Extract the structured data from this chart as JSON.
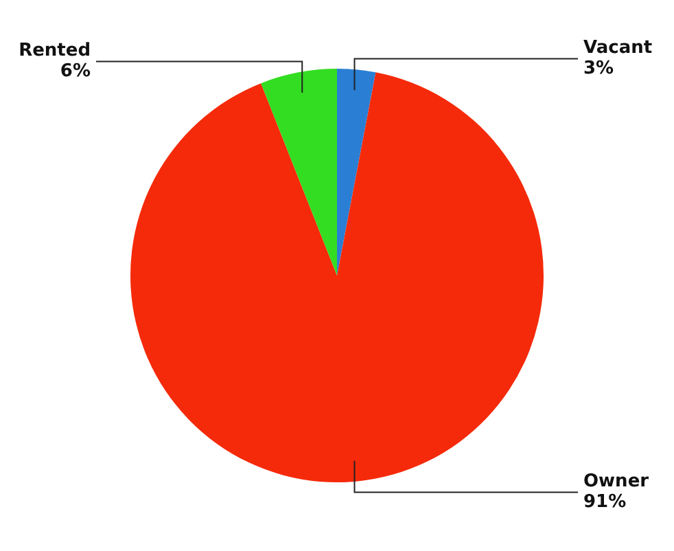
{
  "chart_data": {
    "type": "pie",
    "categories": [
      "Vacant",
      "Owner",
      "Rented"
    ],
    "values": [
      3,
      91,
      6
    ],
    "value_labels": [
      "3%",
      "91%",
      "6%"
    ],
    "colors": [
      "#2a7fd4",
      "#f52a0a",
      "#33dd22"
    ],
    "legend": false
  }
}
